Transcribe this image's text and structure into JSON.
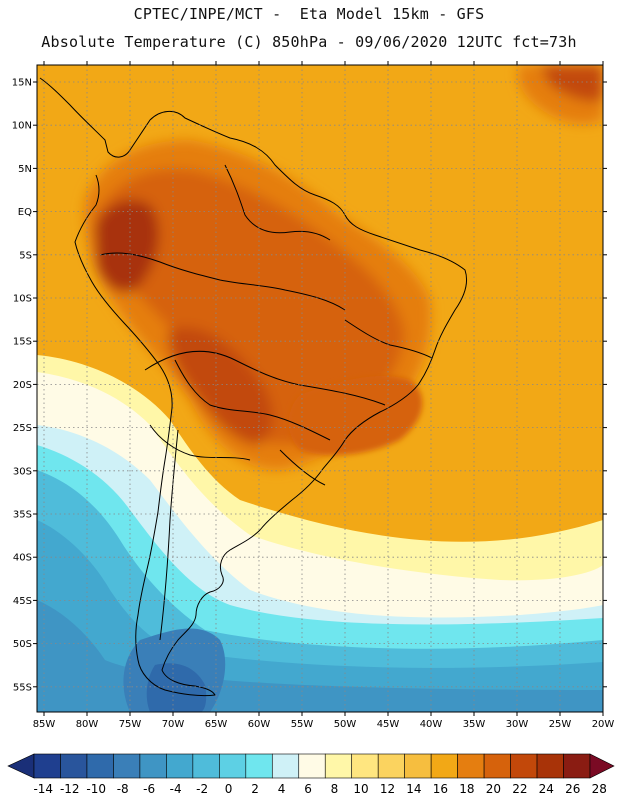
{
  "title_line1": "CPTEC/INPE/MCT -  Eta Model 15km - GFS",
  "title_line2": "Absolute Temperature (C) 850hPa - 09/06/2020 12UTC fct=73h",
  "lat_labels": [
    "15N",
    "10N",
    "5N",
    "EQ",
    "5S",
    "10S",
    "15S",
    "20S",
    "25S",
    "30S",
    "35S",
    "40S",
    "45S",
    "50S",
    "55S"
  ],
  "lon_labels": [
    "85W",
    "80W",
    "75W",
    "70W",
    "65W",
    "60W",
    "55W",
    "50W",
    "45W",
    "40W",
    "35W",
    "30W",
    "25W",
    "20W"
  ],
  "colorbar": {
    "levels": [
      "-14",
      "-12",
      "-10",
      "-8",
      "-6",
      "-4",
      "-2",
      "0",
      "2",
      "4",
      "6",
      "8",
      "10",
      "12",
      "14",
      "16",
      "18",
      "20",
      "22",
      "24",
      "26",
      "28"
    ],
    "colors": [
      "#1f3f8f",
      "#29559c",
      "#2f6aab",
      "#3a7fb8",
      "#3f95c4",
      "#43a8cf",
      "#4fbcda",
      "#5dd0e4",
      "#6fe6ee",
      "#cff1f7",
      "#fffbe6",
      "#fff7a8",
      "#ffe680",
      "#fbd35f",
      "#f6be3f",
      "#f2a816",
      "#e57e10",
      "#d6620c",
      "#c2480a",
      "#a83308",
      "#8a1c12"
    ],
    "below_color": "#1a2f78",
    "above_color": "#7a0a24"
  }
}
